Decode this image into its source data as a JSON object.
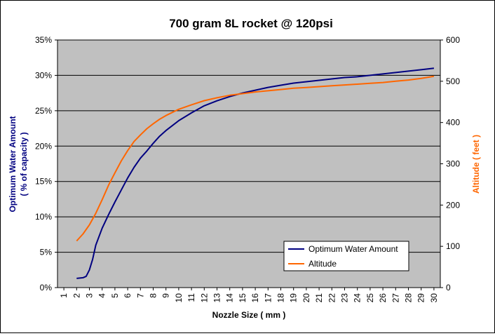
{
  "chart_data": {
    "type": "line",
    "title": "700 gram 8L rocket @ 120psi",
    "xlabel": "Nozzle Size ( mm )",
    "ylabel_left_line1": "Optimum Water Amount",
    "ylabel_left_line2": "( % of capacity )",
    "ylabel_right": "Altitude ( feet )",
    "x_ticks": [
      1,
      2,
      3,
      4,
      5,
      6,
      7,
      8,
      9,
      10,
      11,
      12,
      13,
      14,
      15,
      16,
      17,
      18,
      19,
      20,
      21,
      22,
      23,
      24,
      25,
      26,
      27,
      28,
      29,
      30
    ],
    "xlim": [
      0.5,
      30.5
    ],
    "y_left_ticks": [
      "0%",
      "5%",
      "10%",
      "15%",
      "20%",
      "25%",
      "30%",
      "35%"
    ],
    "y_left_values": [
      0,
      5,
      10,
      15,
      20,
      25,
      30,
      35
    ],
    "ylim_left": [
      0,
      35
    ],
    "y_right_ticks": [
      "0",
      "100",
      "200",
      "300",
      "400",
      "500",
      "600"
    ],
    "y_right_values": [
      0,
      100,
      200,
      300,
      400,
      500,
      600
    ],
    "ylim_right": [
      0,
      600
    ],
    "grid": "horizontal",
    "legend_position": "bottom-right",
    "colors": {
      "plot_bg": "#c0c0c0",
      "water": "#000080",
      "altitude": "#ff6600",
      "left_axis_title": "#000080",
      "right_axis_title": "#ff6600"
    },
    "series": [
      {
        "name": "Optimum Water Amount",
        "axis": "left",
        "x": [
          2,
          2.5,
          2.75,
          3,
          3.25,
          3.5,
          4,
          4.5,
          5,
          5.5,
          6,
          6.5,
          7,
          7.5,
          8,
          8.5,
          9,
          10,
          11,
          12,
          13,
          14,
          15,
          16,
          17,
          18,
          19,
          20,
          21,
          22,
          23,
          24,
          25,
          26,
          27,
          28,
          29,
          30
        ],
        "y": [
          1.3,
          1.4,
          1.6,
          2.5,
          4.0,
          6.0,
          8.4,
          10.3,
          12.1,
          13.8,
          15.5,
          17.0,
          18.3,
          19.3,
          20.4,
          21.4,
          22.2,
          23.6,
          24.7,
          25.7,
          26.4,
          27.0,
          27.5,
          27.9,
          28.3,
          28.6,
          28.9,
          29.1,
          29.3,
          29.5,
          29.7,
          29.8,
          30.0,
          30.2,
          30.4,
          30.6,
          30.8,
          31.0
        ]
      },
      {
        "name": "Altitude",
        "axis": "right",
        "x": [
          2,
          2.5,
          3,
          3.5,
          4,
          4.5,
          5,
          5.5,
          6,
          6.5,
          7,
          7.5,
          8,
          8.5,
          9,
          10,
          11,
          12,
          13,
          14,
          15,
          16,
          17,
          18,
          19,
          20,
          21,
          22,
          23,
          24,
          25,
          26,
          27,
          28,
          29,
          30
        ],
        "y": [
          113,
          130,
          152,
          180,
          213,
          248,
          278,
          307,
          332,
          354,
          370,
          385,
          397,
          408,
          417,
          432,
          443,
          453,
          460,
          466,
          470,
          474,
          477,
          480,
          483,
          485,
          487,
          489,
          491,
          493,
          495,
          497,
          500,
          503,
          507,
          512
        ]
      }
    ]
  }
}
